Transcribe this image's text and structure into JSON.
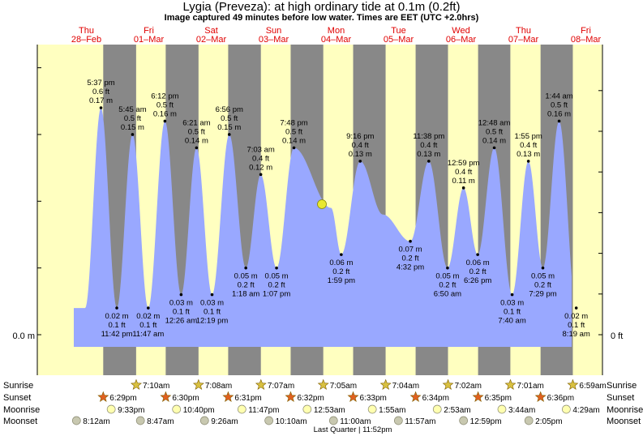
{
  "header": {
    "title": "Lygia (Preveza): at high  ordinary tide at 0.1m (0.2ft)",
    "subtitle": "Image captured 49 minutes before low water. Times are EET (UTC +2.0hrs)"
  },
  "colors": {
    "day": "#ffffc0",
    "night": "#888888",
    "water": "#99a8ff",
    "date_text": "#e00000",
    "moon_marker": "#e8e830"
  },
  "icons": {
    "sunrise": "star-icon",
    "sunset": "star-icon",
    "moonrise": "circle-icon",
    "moonset": "circle-icon"
  },
  "chart_data": {
    "type": "area",
    "x_axis_days": [
      {
        "day": "Thu",
        "date": "28–Feb"
      },
      {
        "day": "Fri",
        "date": "01–Mar"
      },
      {
        "day": "Sat",
        "date": "02–Mar"
      },
      {
        "day": "Sun",
        "date": "03–Mar"
      },
      {
        "day": "Mon",
        "date": "04–Mar"
      },
      {
        "day": "Tue",
        "date": "05–Mar"
      },
      {
        "day": "Wed",
        "date": "06–Mar"
      },
      {
        "day": "Thu",
        "date": "07–Mar"
      },
      {
        "day": "Fri",
        "date": "08–Mar"
      }
    ],
    "y_axis": {
      "left_label": "0.0 m",
      "right_label": "0 ft"
    },
    "high_tides": [
      {
        "time": "5:37 pm",
        "m": 0.17,
        "ft": 0.6,
        "m_label": "0.17 m",
        "ft_label": "0.6 ft"
      },
      {
        "time": "5:45 am",
        "m": 0.15,
        "ft": 0.5,
        "m_label": "0.15 m",
        "ft_label": "0.5 ft"
      },
      {
        "time": "6:12 pm",
        "m": 0.16,
        "ft": 0.5,
        "m_label": "0.16 m",
        "ft_label": "0.5 ft"
      },
      {
        "time": "6:21 am",
        "m": 0.14,
        "ft": 0.5,
        "m_label": "0.14 m",
        "ft_label": "0.5 ft"
      },
      {
        "time": "6:56 pm",
        "m": 0.15,
        "ft": 0.5,
        "m_label": "0.15 m",
        "ft_label": "0.5 ft"
      },
      {
        "time": "7:03 am",
        "m": 0.12,
        "ft": 0.4,
        "m_label": "0.12 m",
        "ft_label": "0.4 ft"
      },
      {
        "time": "7:48 pm",
        "m": 0.14,
        "ft": 0.5,
        "m_label": "0.14 m",
        "ft_label": "0.5 ft"
      },
      {
        "time": "9:16 pm",
        "m": 0.13,
        "ft": 0.4,
        "m_label": "0.13 m",
        "ft_label": "0.4 ft"
      },
      {
        "time": "11:38 pm",
        "m": 0.13,
        "ft": 0.4,
        "m_label": "0.13 m",
        "ft_label": "0.4 ft"
      },
      {
        "time": "12:59 pm",
        "m": 0.11,
        "ft": 0.4,
        "m_label": "0.11 m",
        "ft_label": "0.4 ft"
      },
      {
        "time": "12:48 am",
        "m": 0.14,
        "ft": 0.5,
        "m_label": "0.14 m",
        "ft_label": "0.5 ft"
      },
      {
        "time": "1:55 pm",
        "m": 0.13,
        "ft": 0.4,
        "m_label": "0.13 m",
        "ft_label": "0.4 ft"
      },
      {
        "time": "1:44 am",
        "m": 0.16,
        "ft": 0.5,
        "m_label": "0.16 m",
        "ft_label": "0.5 ft"
      }
    ],
    "low_tides": [
      {
        "time": "11:42 pm",
        "m": 0.02,
        "ft": 0.1,
        "m_label": "0.02 m",
        "ft_label": "0.1 ft"
      },
      {
        "time": "11:47 am",
        "m": 0.02,
        "ft": 0.1,
        "m_label": "0.02 m",
        "ft_label": "0.1 ft"
      },
      {
        "time": "12:26 am",
        "m": 0.03,
        "ft": 0.1,
        "m_label": "0.03 m",
        "ft_label": "0.1 ft"
      },
      {
        "time": "12:19 pm",
        "m": 0.03,
        "ft": 0.1,
        "m_label": "0.03 m",
        "ft_label": "0.1 ft"
      },
      {
        "time": "1:18 am",
        "m": 0.05,
        "ft": 0.2,
        "m_label": "0.05 m",
        "ft_label": "0.2 ft"
      },
      {
        "time": "1:07 pm",
        "m": 0.05,
        "ft": 0.2,
        "m_label": "0.05 m",
        "ft_label": "0.2 ft"
      },
      {
        "time": "1:59 pm",
        "m": 0.06,
        "ft": 0.2,
        "m_label": "0.06 m",
        "ft_label": "0.2 ft"
      },
      {
        "time": "4:32 pm",
        "m": 0.07,
        "ft": 0.2,
        "m_label": "0.07 m",
        "ft_label": "0.2 ft"
      },
      {
        "time": "6:50 am",
        "m": 0.05,
        "ft": 0.2,
        "m_label": "0.05 m",
        "ft_label": "0.2 ft"
      },
      {
        "time": "6:26 pm",
        "m": 0.06,
        "ft": 0.2,
        "m_label": "0.06 m",
        "ft_label": "0.2 ft"
      },
      {
        "time": "7:40 am",
        "m": 0.03,
        "ft": 0.1,
        "m_label": "0.03 m",
        "ft_label": "0.1 ft"
      },
      {
        "time": "7:29 pm",
        "m": 0.05,
        "ft": 0.2,
        "m_label": "0.05 m",
        "ft_label": "0.2 ft"
      },
      {
        "time": "8:19 am",
        "m": 0.02,
        "ft": 0.1,
        "m_label": "0.02 m",
        "ft_label": "0.1 ft"
      }
    ],
    "sunrise": [
      "7:10am",
      "7:08am",
      "7:07am",
      "7:05am",
      "7:04am",
      "7:02am",
      "7:01am",
      "6:59am"
    ],
    "sunset": [
      "6:29pm",
      "6:30pm",
      "6:31pm",
      "6:32pm",
      "6:33pm",
      "6:34pm",
      "6:35pm",
      "6:36pm"
    ],
    "moonrise": [
      "9:33pm",
      "10:40pm",
      "11:47pm",
      "12:53am",
      "1:55am",
      "2:53am",
      "3:44am",
      "4:29am"
    ],
    "moonset": [
      "8:12am",
      "8:47am",
      "9:26am",
      "10:10am",
      "11:00am",
      "11:57am",
      "12:59pm",
      "2:05pm"
    ],
    "row_labels": {
      "sunrise": "Sunrise",
      "sunset": "Sunset",
      "moonrise": "Moonrise",
      "moonset": "Moonset"
    },
    "moon_phase": "Last Quarter | 11:52pm"
  }
}
